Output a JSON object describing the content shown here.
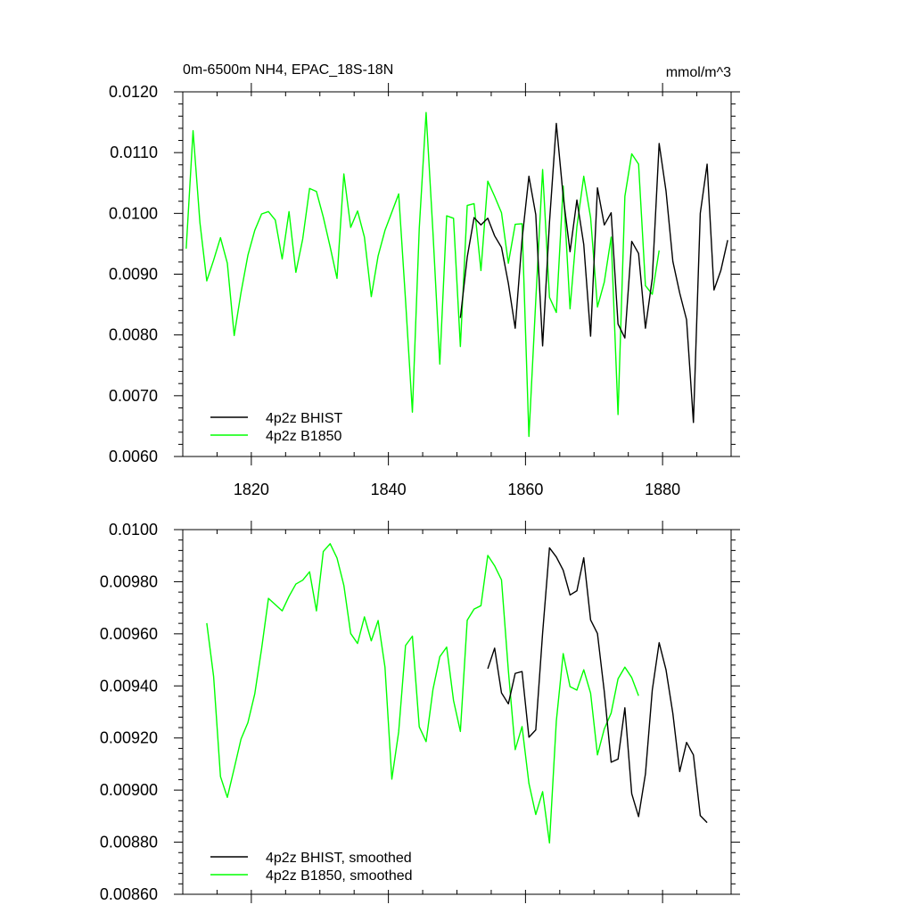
{
  "chart_data": [
    {
      "type": "line",
      "title": "0m-6500m NH4, EPAC_18S-18N",
      "units": "mmol/m^3",
      "xlabel": "",
      "ylabel": "",
      "xlim": [
        1810,
        1890
      ],
      "ylim": [
        0.006,
        0.012
      ],
      "xticks": [
        1820,
        1840,
        1860,
        1880
      ],
      "xtick_labels": [
        "1820",
        "1840",
        "1860",
        "1880"
      ],
      "yticks": [
        0.006,
        0.007,
        0.008,
        0.009,
        0.01,
        0.011,
        0.012
      ],
      "ytick_labels": [
        "0.0060",
        "0.0070",
        "0.0080",
        "0.0090",
        "0.0100",
        "0.0110",
        "0.0120"
      ],
      "legend_position": "bottom-left",
      "grid": false,
      "series": [
        {
          "name": "4p2z BHIST",
          "color": "#000000",
          "x": [
            1850.5,
            1851.5,
            1852.5,
            1853.5,
            1854.5,
            1855.5,
            1856.5,
            1857.5,
            1858.5,
            1859.5,
            1860.5,
            1861.5,
            1862.5,
            1863.5,
            1864.5,
            1865.5,
            1866.5,
            1867.5,
            1868.5,
            1869.5,
            1870.5,
            1871.5,
            1872.5,
            1873.5,
            1874.5,
            1875.5,
            1876.5,
            1877.5,
            1878.5,
            1879.5,
            1880.5,
            1881.5,
            1882.5,
            1883.5,
            1884.5,
            1885.5,
            1886.5,
            1887.5,
            1888.5,
            1889.5
          ],
          "y": [
            0.00828,
            0.00928,
            0.00993,
            0.00981,
            0.00992,
            0.00963,
            0.00944,
            0.00885,
            0.00811,
            0.00957,
            0.01061,
            0.00998,
            0.00782,
            0.00985,
            0.01148,
            0.01028,
            0.00937,
            0.01022,
            0.00949,
            0.00798,
            0.01042,
            0.00981,
            0.01001,
            0.00818,
            0.00795,
            0.00954,
            0.00934,
            0.00811,
            0.00893,
            0.01115,
            0.01037,
            0.00921,
            0.00869,
            0.00825,
            0.00656,
            0.01,
            0.01081,
            0.00874,
            0.00906,
            0.00956
          ]
        },
        {
          "name": "4p2z B1850",
          "color": "#00ff00",
          "x": [
            1810.5,
            1811.5,
            1812.5,
            1813.5,
            1814.5,
            1815.5,
            1816.5,
            1817.5,
            1818.5,
            1819.5,
            1820.5,
            1821.5,
            1822.5,
            1823.5,
            1824.5,
            1825.5,
            1826.5,
            1827.5,
            1828.5,
            1829.5,
            1830.5,
            1831.5,
            1832.5,
            1833.5,
            1834.5,
            1835.5,
            1836.5,
            1837.5,
            1838.5,
            1839.5,
            1840.5,
            1841.5,
            1842.5,
            1843.5,
            1844.5,
            1845.5,
            1846.5,
            1847.5,
            1848.5,
            1849.5,
            1850.5,
            1851.5,
            1852.5,
            1853.5,
            1854.5,
            1855.5,
            1856.5,
            1857.5,
            1858.5,
            1859.5,
            1860.5,
            1861.5,
            1862.5,
            1863.5,
            1864.5,
            1865.5,
            1866.5,
            1867.5,
            1868.5,
            1869.5,
            1870.5,
            1871.5,
            1872.5,
            1873.5,
            1874.5,
            1875.5,
            1876.5,
            1877.5,
            1878.5,
            1879.5
          ],
          "y": [
            0.00942,
            0.01136,
            0.00985,
            0.00889,
            0.00923,
            0.0096,
            0.00918,
            0.00799,
            0.0087,
            0.00931,
            0.00972,
            0.00999,
            0.01003,
            0.00989,
            0.00925,
            0.01003,
            0.00903,
            0.00958,
            0.01041,
            0.01036,
            0.00994,
            0.00945,
            0.00893,
            0.01065,
            0.00977,
            0.01004,
            0.00961,
            0.00863,
            0.0093,
            0.00972,
            0.01002,
            0.01032,
            0.00857,
            0.00673,
            0.00975,
            0.01166,
            0.00969,
            0.00752,
            0.00996,
            0.00992,
            0.00781,
            0.01013,
            0.01016,
            0.00906,
            0.01053,
            0.01028,
            0.01001,
            0.00918,
            0.00982,
            0.00983,
            0.00633,
            0.00857,
            0.01072,
            0.00862,
            0.00837,
            0.01045,
            0.00843,
            0.00978,
            0.01061,
            0.00993,
            0.00846,
            0.00887,
            0.00961,
            0.00669,
            0.01028,
            0.01098,
            0.01081,
            0.00881,
            0.00867,
            0.00939
          ]
        }
      ]
    },
    {
      "type": "line",
      "title": "",
      "xlabel": "",
      "ylabel": "",
      "xlim": [
        1810,
        1890
      ],
      "ylim": [
        0.0086,
        0.01
      ],
      "xticks": [
        1820,
        1840,
        1860,
        1880
      ],
      "yticks": [
        0.0086,
        0.0088,
        0.009,
        0.0092,
        0.0094,
        0.0096,
        0.0098,
        0.01
      ],
      "ytick_labels": [
        "0.00860",
        "0.00880",
        "0.00900",
        "0.00920",
        "0.00940",
        "0.00960",
        "0.00980",
        "0.0100"
      ],
      "legend_position": "bottom-left",
      "grid": false,
      "series": [
        {
          "name": "4p2z BHIST, smoothed",
          "color": "#000000",
          "x": [
            1854.5,
            1855.5,
            1856.5,
            1857.5,
            1858.5,
            1859.5,
            1860.5,
            1861.5,
            1862.5,
            1863.5,
            1864.5,
            1865.5,
            1866.5,
            1867.5,
            1868.5,
            1869.5,
            1870.5,
            1871.5,
            1872.5,
            1873.5,
            1874.5,
            1875.5,
            1876.5,
            1877.5,
            1878.5,
            1879.5,
            1880.5,
            1881.5,
            1882.5,
            1883.5,
            1884.5,
            1885.5,
            1886.5
          ],
          "y": [
            0.009466,
            0.009545,
            0.009373,
            0.009331,
            0.009448,
            0.009455,
            0.009203,
            0.009231,
            0.009603,
            0.00993,
            0.009895,
            0.009844,
            0.009749,
            0.009765,
            0.009892,
            0.009653,
            0.009601,
            0.009377,
            0.009107,
            0.009119,
            0.009316,
            0.008986,
            0.008898,
            0.009062,
            0.009384,
            0.009566,
            0.009462,
            0.009294,
            0.009071,
            0.009183,
            0.009135,
            0.008902,
            0.008875
          ]
        },
        {
          "name": "4p2z B1850, smoothed",
          "color": "#00ff00",
          "x": [
            1813.5,
            1814.5,
            1815.5,
            1816.5,
            1817.5,
            1818.5,
            1819.5,
            1820.5,
            1821.5,
            1822.5,
            1823.5,
            1824.5,
            1825.5,
            1826.5,
            1827.5,
            1828.5,
            1829.5,
            1830.5,
            1831.5,
            1832.5,
            1833.5,
            1834.5,
            1835.5,
            1836.5,
            1837.5,
            1838.5,
            1839.5,
            1840.5,
            1841.5,
            1842.5,
            1843.5,
            1844.5,
            1845.5,
            1846.5,
            1847.5,
            1848.5,
            1849.5,
            1850.5,
            1851.5,
            1852.5,
            1853.5,
            1854.5,
            1855.5,
            1856.5,
            1857.5,
            1858.5,
            1859.5,
            1860.5,
            1861.5,
            1862.5,
            1863.5,
            1864.5,
            1865.5,
            1866.5,
            1867.5,
            1868.5,
            1869.5,
            1870.5,
            1871.5,
            1872.5,
            1873.5,
            1874.5,
            1875.5,
            1876.5
          ],
          "y": [
            0.009641,
            0.009436,
            0.009052,
            0.008972,
            0.009083,
            0.009196,
            0.009259,
            0.009369,
            0.009543,
            0.009736,
            0.009712,
            0.009688,
            0.009744,
            0.009791,
            0.009806,
            0.009838,
            0.009688,
            0.009916,
            0.009946,
            0.009891,
            0.009786,
            0.009601,
            0.009563,
            0.009665,
            0.009573,
            0.009651,
            0.009472,
            0.009042,
            0.009224,
            0.009555,
            0.009591,
            0.009243,
            0.009186,
            0.009386,
            0.009512,
            0.009549,
            0.009344,
            0.009225,
            0.009652,
            0.009695,
            0.009708,
            0.009901,
            0.009861,
            0.009807,
            0.009459,
            0.009155,
            0.009244,
            0.009026,
            0.008906,
            0.008994,
            0.008797,
            0.009265,
            0.009524,
            0.009397,
            0.009384,
            0.009462,
            0.009372,
            0.009135,
            0.009235,
            0.009296,
            0.009427,
            0.009472,
            0.009432,
            0.009362
          ]
        }
      ]
    }
  ]
}
